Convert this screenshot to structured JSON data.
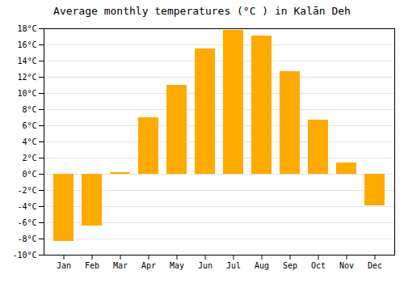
{
  "chart_data": {
    "type": "bar",
    "title": "Average monthly temperatures (°C ) in Kalān Deh",
    "categories": [
      "Jan",
      "Feb",
      "Mar",
      "Apr",
      "May",
      "Jun",
      "Jul",
      "Aug",
      "Sep",
      "Oct",
      "Nov",
      "Dec"
    ],
    "values": [
      -8.3,
      -6.4,
      0.2,
      7.0,
      11.0,
      15.5,
      17.8,
      17.1,
      12.7,
      6.7,
      1.4,
      -3.9
    ],
    "color": "#FFAA00",
    "ylim": [
      -10,
      18
    ],
    "yticks": [
      {
        "value": -10,
        "label": "-10°C"
      },
      {
        "value": -8,
        "label": "-8°C"
      },
      {
        "value": -6,
        "label": "-6°C"
      },
      {
        "value": -4,
        "label": "-4°C"
      },
      {
        "value": -2,
        "label": "-2°C"
      },
      {
        "value": 0,
        "label": "0°C"
      },
      {
        "value": 2,
        "label": "2°C"
      },
      {
        "value": 4,
        "label": "4°C"
      },
      {
        "value": 6,
        "label": "6°C"
      },
      {
        "value": 8,
        "label": "8°C"
      },
      {
        "value": 10,
        "label": "10°C"
      },
      {
        "value": 12,
        "label": "12°C"
      },
      {
        "value": 14,
        "label": "14°C"
      },
      {
        "value": 16,
        "label": "16°C"
      },
      {
        "value": 18,
        "label": "18°C"
      }
    ],
    "grid": true
  }
}
